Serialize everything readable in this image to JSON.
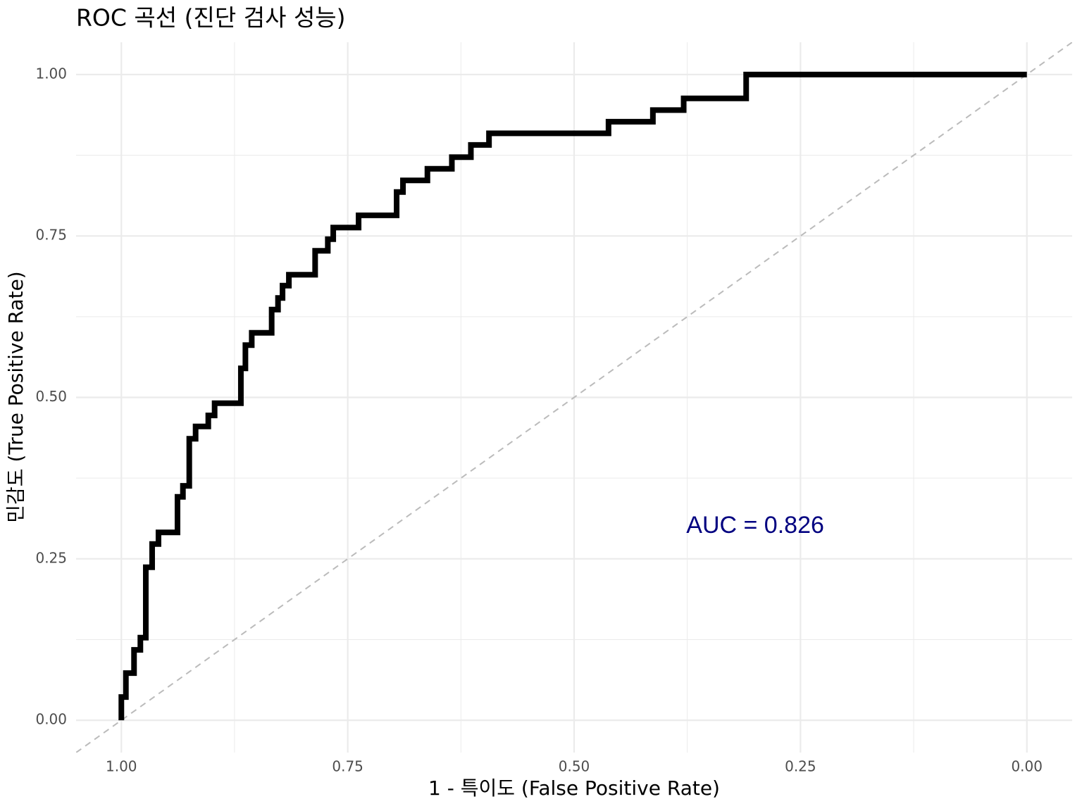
{
  "chart_data": {
    "type": "step",
    "title": "ROC 곡선 (진단 검사 성능)",
    "x_label": "1 - 특이도 (False Positive Rate)",
    "y_label": "민감도 (True Positive Rate)",
    "xlim": [
      1.05,
      -0.05
    ],
    "ylim": [
      -0.05,
      1.05
    ],
    "xticks": [
      {
        "value": 1,
        "label": "1.00"
      },
      {
        "value": 0.75,
        "label": "0.75"
      },
      {
        "value": 0.5,
        "label": "0.50"
      },
      {
        "value": 0.25,
        "label": "0.25"
      },
      {
        "value": 0,
        "label": "0.00"
      }
    ],
    "yticks": [
      {
        "value": 0,
        "label": "0.00"
      },
      {
        "value": 0.25,
        "label": "0.25"
      },
      {
        "value": 0.5,
        "label": "0.50"
      },
      {
        "value": 0.75,
        "label": "0.75"
      },
      {
        "value": 1,
        "label": "1.00"
      }
    ],
    "x_minor_ticks": [
      0.875,
      0.625,
      0.375,
      0.125
    ],
    "y_minor_ticks": [
      0.125,
      0.375,
      0.625,
      0.875
    ],
    "grid": true,
    "color": "#000000",
    "x": [
      1.0,
      0.995,
      0.986,
      0.979,
      0.973,
      0.966,
      0.959,
      0.938,
      0.932,
      0.925,
      0.918,
      0.904,
      0.897,
      0.868,
      0.863,
      0.856,
      0.834,
      0.827,
      0.822,
      0.815,
      0.786,
      0.772,
      0.766,
      0.738,
      0.696,
      0.689,
      0.662,
      0.635,
      0.614,
      0.594,
      0.462,
      0.413,
      0.379,
      0.31,
      0.0
    ],
    "values": [
      0,
      0.036,
      0.073,
      0.109,
      0.128,
      0.237,
      0.273,
      0.291,
      0.346,
      0.363,
      0.436,
      0.455,
      0.472,
      0.491,
      0.545,
      0.581,
      0.6,
      0.636,
      0.654,
      0.673,
      0.69,
      0.727,
      0.745,
      0.763,
      0.782,
      0.818,
      0.836,
      0.854,
      0.872,
      0.891,
      0.909,
      0.927,
      0.945,
      0.963,
      1.0
    ],
    "reference_line": {
      "x": [
        1,
        0
      ],
      "y": [
        0,
        1
      ],
      "color": "#bbbbbb"
    },
    "annotation": {
      "text": "AUC = 0.826",
      "x": 0.3,
      "y": 0.3,
      "color": "#000080"
    }
  }
}
